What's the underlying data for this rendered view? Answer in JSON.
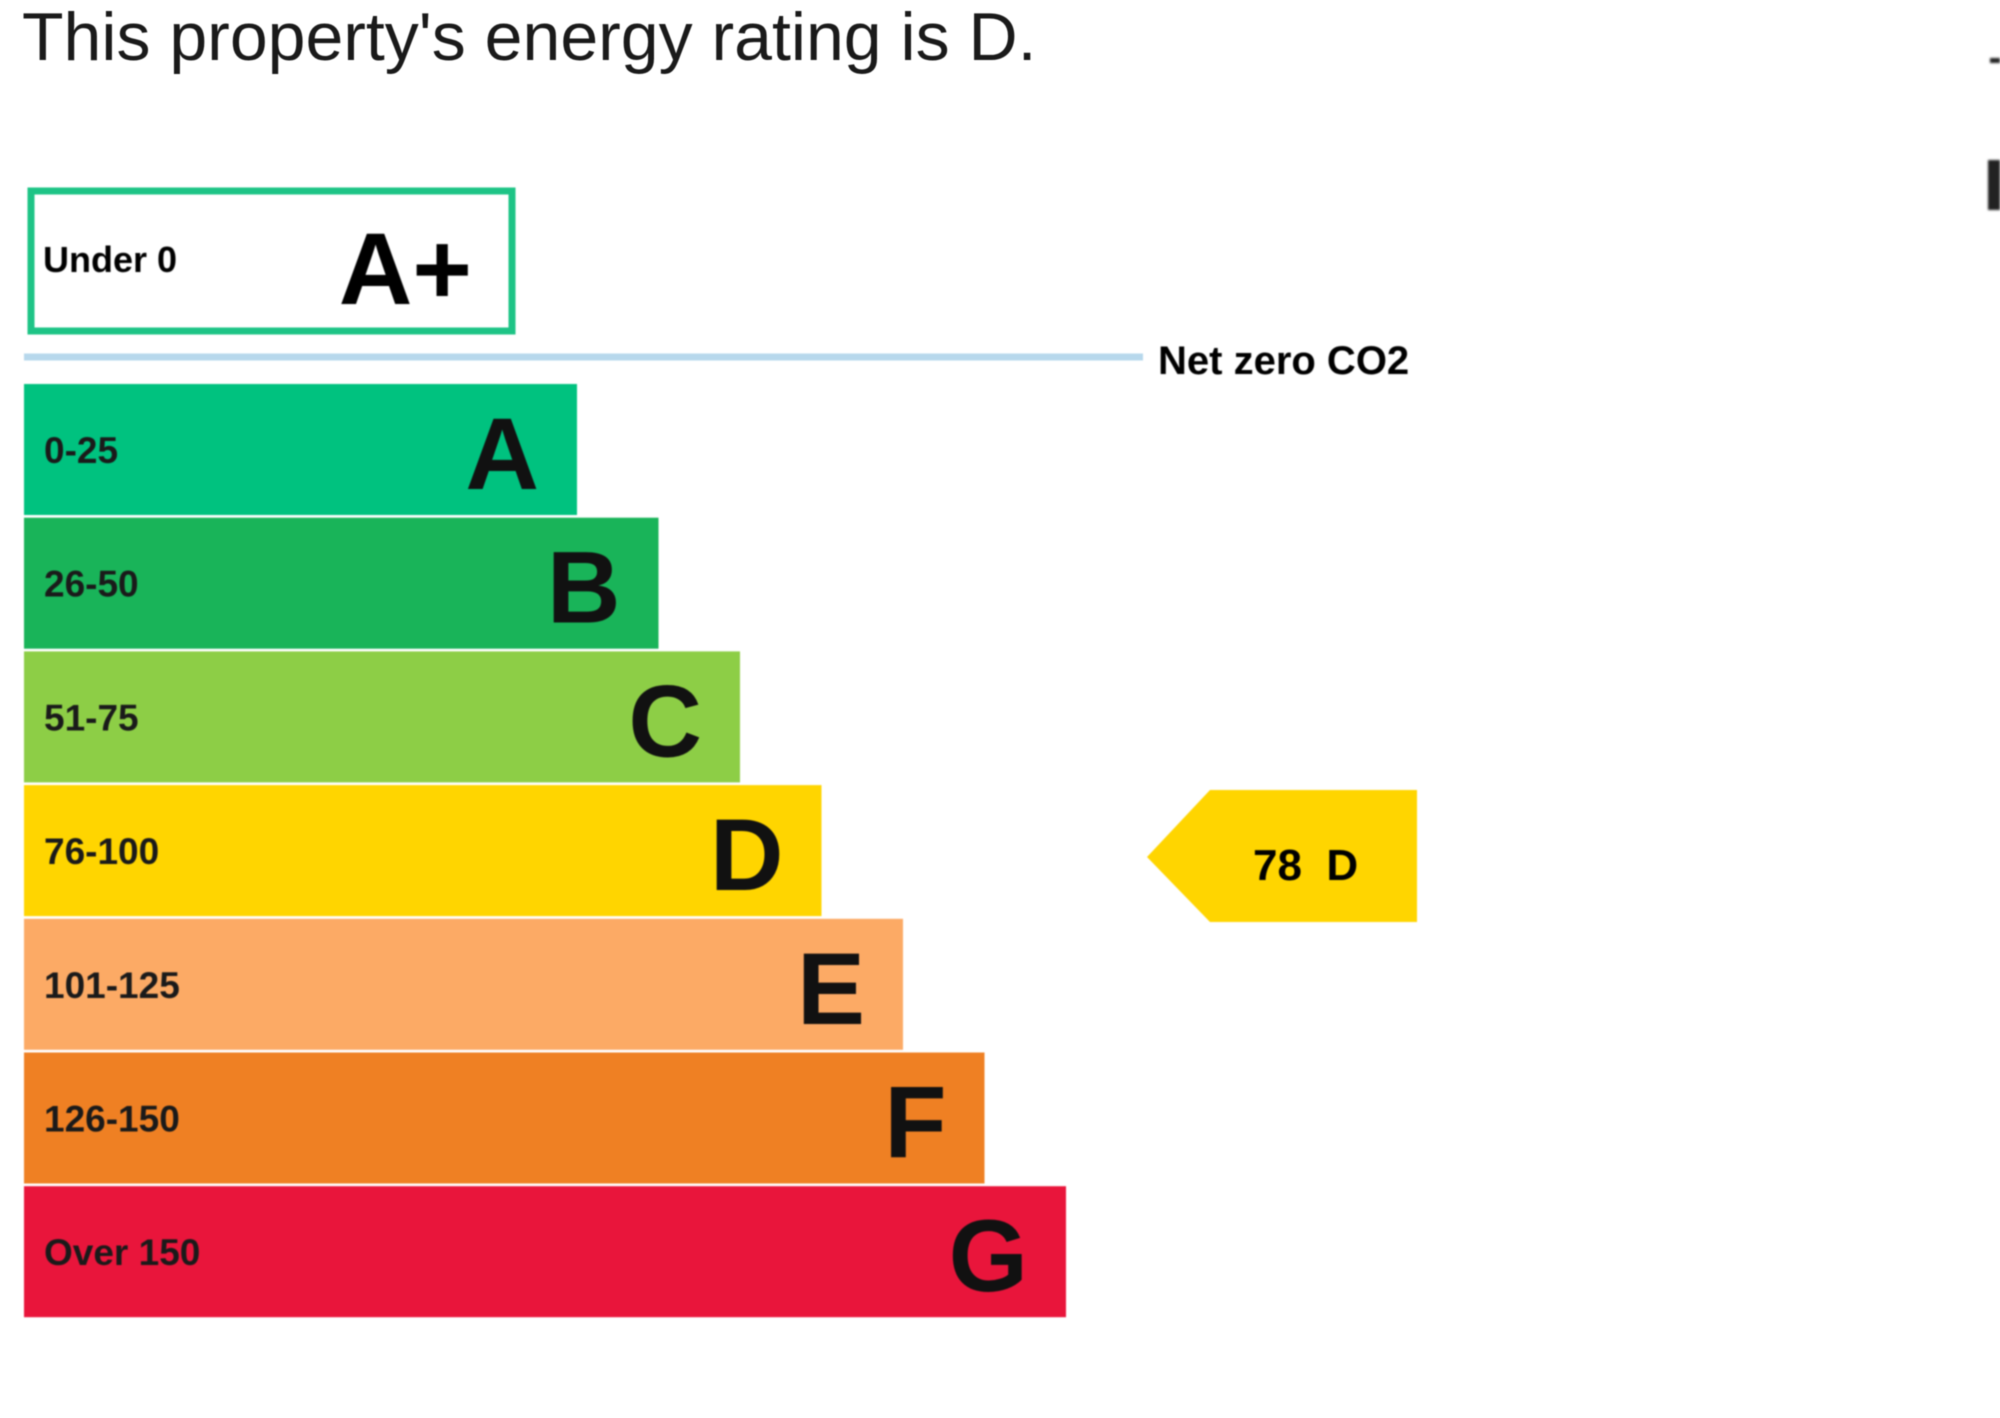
{
  "headline": "This property's energy rating is D.",
  "chart_data": {
    "type": "bar",
    "bands": [
      {
        "letter": "A",
        "range": "0-25",
        "color": "#00c27f"
      },
      {
        "letter": "B",
        "range": "26-50",
        "color": "#19b459"
      },
      {
        "letter": "C",
        "range": "51-75",
        "color": "#8dce46"
      },
      {
        "letter": "D",
        "range": "76-100",
        "color": "#ffd500"
      },
      {
        "letter": "E",
        "range": "101-125",
        "color": "#fcaa65"
      },
      {
        "letter": "F",
        "range": "126-150",
        "color": "#ef8023"
      },
      {
        "letter": "G",
        "range": "Over 150",
        "color": "#e9153b"
      }
    ],
    "top_band": {
      "letter": "A+",
      "range": "Under 0",
      "border_color": "#1ec486"
    },
    "net_zero_label": "Net zero CO2",
    "net_zero_line_color": "#b7d8ec",
    "current": {
      "value": 78,
      "band": "D",
      "label": "78  D",
      "color": "#ffd500"
    }
  }
}
